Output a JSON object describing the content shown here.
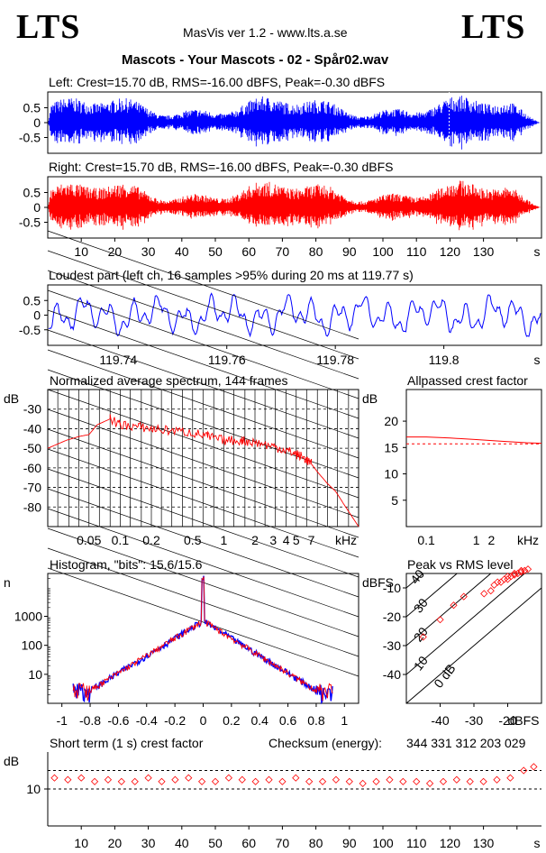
{
  "header": {
    "logo_left": "LTS",
    "logo_right": "LTS",
    "app_title": "MasVis ver 1.2 - www.lts.a.se",
    "track_title": "Mascots - Your Mascots - 02 - Spår02.wav"
  },
  "colors": {
    "left": "#0000ff",
    "right": "#ff0000",
    "axis": "#000000"
  },
  "chart_data": [
    {
      "id": "left_waveform",
      "type": "line",
      "title": "Left: Crest=15.70 dB, RMS=-16.00 dBFS, Peak=-0.30 dBFS",
      "y_ticks": [
        "0.5",
        "0",
        "-0.5"
      ],
      "ylim": [
        -1,
        1
      ],
      "xlim": [
        0,
        147
      ],
      "series_color": "#0000ff"
    },
    {
      "id": "right_waveform",
      "type": "line",
      "title": "Right: Crest=15.70 dB, RMS=-16.00 dBFS, Peak=-0.30 dBFS",
      "y_ticks": [
        "0.5",
        "0",
        "-0.5"
      ],
      "ylim": [
        -1,
        1
      ],
      "x_ticks": [
        "10",
        "20",
        "30",
        "40",
        "50",
        "60",
        "70",
        "80",
        "90",
        "100",
        "110",
        "120",
        "130",
        "s"
      ],
      "xlim": [
        0,
        147
      ],
      "series_color": "#ff0000"
    },
    {
      "id": "loudest_part",
      "type": "line",
      "title": "Loudest part (left  ch, 16 samples >95% during 20 ms at 119.77 s)",
      "y_ticks": [
        "0.5",
        "0",
        "-0.5"
      ],
      "ylim": [
        -1,
        1
      ],
      "x_ticks": [
        "119.74",
        "119.76",
        "119.78",
        "119.8",
        "s"
      ],
      "xlim": [
        119.727,
        119.818
      ],
      "series_color": "#0000ff"
    },
    {
      "id": "spectrum",
      "type": "line",
      "title": "Normalized average spectrum, 144 frames",
      "ylabel": "dB",
      "xlabel": "kHz",
      "y_ticks": [
        "-30",
        "-40",
        "-50",
        "-60",
        "-70",
        "-80"
      ],
      "x_ticks": [
        "0.05",
        "0.1",
        "0.2",
        "0.5",
        "1",
        "2",
        "3",
        "4",
        "5",
        "7",
        "kHz"
      ],
      "x_scale": "log",
      "xlim": [
        0.02,
        20
      ],
      "ylim": [
        -90,
        -20
      ],
      "x": [
        0.02,
        0.03,
        0.04,
        0.05,
        0.06,
        0.08,
        0.1,
        0.15,
        0.2,
        0.3,
        0.5,
        0.7,
        1,
        1.5,
        2,
        3,
        4,
        5,
        6,
        7,
        8,
        10,
        12,
        15,
        20
      ],
      "values": [
        -50,
        -46,
        -44,
        -43,
        -38,
        -35,
        -38,
        -39,
        -40,
        -41,
        -42,
        -44,
        -46,
        -46,
        -47,
        -49,
        -51,
        -53,
        -55,
        -58,
        -62,
        -68,
        -72,
        -80,
        -90
      ],
      "series_color": "#ff0000"
    },
    {
      "id": "allpassed_crest",
      "type": "line",
      "title": "Allpassed crest factor",
      "ylabel": "dB",
      "xlabel": "kHz",
      "y_ticks": [
        "20",
        "15",
        "10",
        "5"
      ],
      "x_ticks": [
        "0.1",
        "1",
        "2",
        "kHz"
      ],
      "x_scale": "log",
      "xlim": [
        0.04,
        20
      ],
      "ylim": [
        0,
        26
      ],
      "x": [
        0.04,
        0.1,
        0.3,
        1,
        3,
        10,
        20
      ],
      "values": [
        17.0,
        17.0,
        16.8,
        16.5,
        16.2,
        15.9,
        15.8
      ],
      "reference_dashed": 15.7,
      "series_color": "#ff0000"
    },
    {
      "id": "histogram",
      "type": "line",
      "title": "Histogram, \"bits\": 15.6/15.6",
      "ylabel": "n",
      "y_ticks": [
        "1000",
        "100",
        "10"
      ],
      "x_ticks": [
        "-1",
        "-0.8",
        "-0.6",
        "-0.4",
        "-0.2",
        "0",
        "0.2",
        "0.4",
        "0.6",
        "0.8",
        "1"
      ],
      "y_scale": "log",
      "xlim": [
        -1.1,
        1.1
      ],
      "ylim": [
        1,
        30000
      ],
      "x": [
        -0.9,
        -0.8,
        -0.6,
        -0.4,
        -0.2,
        -0.01,
        0,
        0.01,
        0.2,
        0.4,
        0.6,
        0.8,
        0.9
      ],
      "values": [
        2,
        3,
        9,
        30,
        110,
        600,
        20000,
        600,
        110,
        30,
        9,
        3,
        2
      ],
      "series": [
        {
          "name": "",
          "color": "#0000ff"
        },
        {
          "name": "",
          "color": "#ff0000"
        }
      ]
    },
    {
      "id": "peak_vs_rms",
      "type": "scatter",
      "title": "Peak vs RMS level",
      "ylabel": "dBFS",
      "xlabel": "dBFS",
      "y_ticks": [
        "-10",
        "-20",
        "-30",
        "-40"
      ],
      "x_ticks": [
        "-40",
        "-30",
        "-20",
        "dBFS"
      ],
      "diagonal_labels": [
        "40",
        "30",
        "20",
        "10",
        "0 dB"
      ],
      "xlim": [
        -50,
        -10
      ],
      "ylim": [
        -50,
        -5
      ],
      "x": [
        -45,
        -40,
        -36,
        -33,
        -27,
        -25,
        -24,
        -23,
        -22,
        -21,
        -20,
        -20,
        -19,
        -18,
        -18,
        -17,
        -16,
        -16,
        -15,
        -14
      ],
      "values": [
        -27,
        -21,
        -16,
        -13,
        -12,
        -11,
        -9,
        -8,
        -8,
        -7,
        -7,
        -6,
        -6,
        -5.5,
        -5,
        -5,
        -4.5,
        -4,
        -4,
        -3.5
      ],
      "series_color": "#ff0000"
    },
    {
      "id": "short_term_crest",
      "type": "scatter",
      "title": "Short term (1 s) crest factor",
      "checksum_label": "Checksum (energy):",
      "checksum_value": "344 331 312 203 029",
      "ylabel": "dB",
      "y_ticks": [
        "10"
      ],
      "x_ticks": [
        "10",
        "20",
        "30",
        "40",
        "50",
        "60",
        "70",
        "80",
        "90",
        "100",
        "110",
        "120",
        "130",
        "s"
      ],
      "xlim": [
        0,
        147
      ],
      "ylim": [
        0,
        20
      ],
      "reference_dashed": [
        10,
        15
      ],
      "x": [
        2,
        6,
        10,
        14,
        18,
        22,
        26,
        30,
        34,
        38,
        42,
        46,
        50,
        54,
        58,
        62,
        66,
        70,
        74,
        78,
        82,
        86,
        90,
        94,
        98,
        102,
        106,
        110,
        114,
        118,
        122,
        126,
        130,
        134,
        138,
        142,
        145
      ],
      "values": [
        13,
        12.5,
        13,
        12,
        12.5,
        12,
        12,
        13,
        12,
        12.5,
        13,
        12,
        12,
        13,
        12.5,
        12,
        12.5,
        12,
        13,
        12,
        12,
        12.5,
        12,
        11.5,
        12,
        12.5,
        12,
        12,
        11.5,
        12,
        12.5,
        12,
        12,
        12.5,
        13,
        15,
        16
      ],
      "series_color": "#ff0000"
    }
  ]
}
